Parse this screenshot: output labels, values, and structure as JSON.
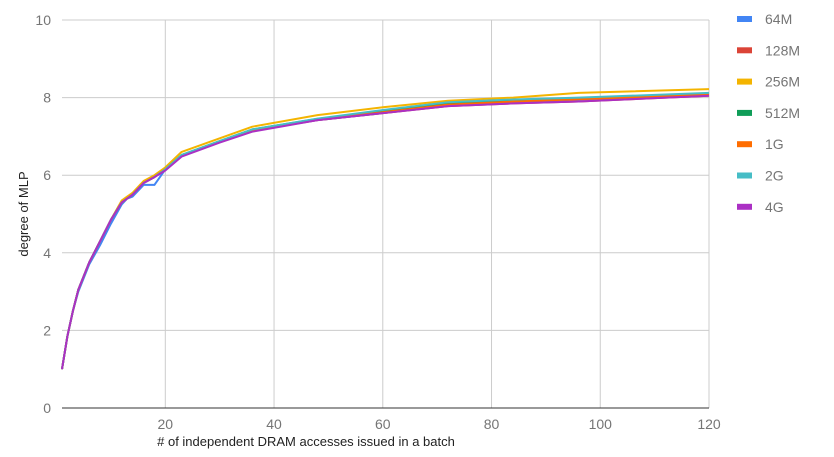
{
  "chart_data": {
    "type": "line",
    "title": "",
    "xlabel": "# of independent DRAM accesses issued in a batch",
    "ylabel": "degree of MLP",
    "xlim": [
      1,
      120
    ],
    "ylim": [
      0,
      10
    ],
    "x_ticks": [
      20,
      40,
      60,
      80,
      100,
      120
    ],
    "y_ticks": [
      0,
      2,
      4,
      6,
      8,
      10
    ],
    "grid": true,
    "legend_position": "right",
    "series": [
      {
        "name": "64M",
        "color": "#4285f4",
        "points": [
          [
            1,
            1.0
          ],
          [
            2,
            1.85
          ],
          [
            3,
            2.5
          ],
          [
            4,
            3.0
          ],
          [
            6,
            3.7
          ],
          [
            8,
            4.2
          ],
          [
            10,
            4.75
          ],
          [
            12,
            5.25
          ],
          [
            13,
            5.4
          ],
          [
            14,
            5.45
          ],
          [
            16,
            5.75
          ],
          [
            17,
            5.75
          ],
          [
            18,
            5.75
          ],
          [
            20,
            6.15
          ],
          [
            23,
            6.5
          ],
          [
            30,
            6.85
          ],
          [
            36,
            7.15
          ],
          [
            48,
            7.42
          ],
          [
            60,
            7.6
          ],
          [
            72,
            7.8
          ],
          [
            84,
            7.88
          ],
          [
            96,
            7.95
          ],
          [
            120,
            8.08
          ]
        ]
      },
      {
        "name": "128M",
        "color": "#db4437",
        "points": [
          [
            1,
            1.0
          ],
          [
            2,
            1.85
          ],
          [
            3,
            2.5
          ],
          [
            4,
            3.05
          ],
          [
            6,
            3.75
          ],
          [
            8,
            4.3
          ],
          [
            10,
            4.85
          ],
          [
            12,
            5.3
          ],
          [
            14,
            5.5
          ],
          [
            16,
            5.8
          ],
          [
            18,
            5.95
          ],
          [
            20,
            6.15
          ],
          [
            23,
            6.5
          ],
          [
            30,
            6.85
          ],
          [
            36,
            7.15
          ],
          [
            48,
            7.42
          ],
          [
            60,
            7.6
          ],
          [
            72,
            7.78
          ],
          [
            84,
            7.85
          ],
          [
            96,
            7.9
          ],
          [
            120,
            8.05
          ]
        ]
      },
      {
        "name": "256M",
        "color": "#f4b400",
        "points": [
          [
            1,
            1.0
          ],
          [
            2,
            1.85
          ],
          [
            3,
            2.5
          ],
          [
            4,
            3.05
          ],
          [
            6,
            3.75
          ],
          [
            8,
            4.3
          ],
          [
            10,
            4.85
          ],
          [
            12,
            5.35
          ],
          [
            14,
            5.55
          ],
          [
            16,
            5.85
          ],
          [
            18,
            6.0
          ],
          [
            20,
            6.2
          ],
          [
            23,
            6.6
          ],
          [
            30,
            6.95
          ],
          [
            36,
            7.25
          ],
          [
            48,
            7.55
          ],
          [
            60,
            7.75
          ],
          [
            72,
            7.92
          ],
          [
            84,
            8.0
          ],
          [
            96,
            8.12
          ],
          [
            120,
            8.22
          ]
        ]
      },
      {
        "name": "512M",
        "color": "#0f9d58",
        "points": [
          [
            1,
            1.0
          ],
          [
            2,
            1.85
          ],
          [
            3,
            2.5
          ],
          [
            4,
            3.05
          ],
          [
            6,
            3.75
          ],
          [
            8,
            4.3
          ],
          [
            10,
            4.85
          ],
          [
            12,
            5.3
          ],
          [
            14,
            5.5
          ],
          [
            16,
            5.8
          ],
          [
            18,
            5.95
          ],
          [
            20,
            6.15
          ],
          [
            23,
            6.52
          ],
          [
            30,
            6.88
          ],
          [
            36,
            7.18
          ],
          [
            48,
            7.45
          ],
          [
            60,
            7.65
          ],
          [
            72,
            7.85
          ],
          [
            84,
            7.92
          ],
          [
            96,
            7.98
          ],
          [
            120,
            8.1
          ]
        ]
      },
      {
        "name": "1G",
        "color": "#ff6d00",
        "points": [
          [
            1,
            1.0
          ],
          [
            2,
            1.85
          ],
          [
            3,
            2.5
          ],
          [
            4,
            3.05
          ],
          [
            6,
            3.75
          ],
          [
            8,
            4.3
          ],
          [
            10,
            4.85
          ],
          [
            12,
            5.3
          ],
          [
            14,
            5.5
          ],
          [
            16,
            5.8
          ],
          [
            18,
            5.95
          ],
          [
            20,
            6.15
          ],
          [
            23,
            6.5
          ],
          [
            30,
            6.86
          ],
          [
            36,
            7.16
          ],
          [
            48,
            7.44
          ],
          [
            60,
            7.62
          ],
          [
            72,
            7.82
          ],
          [
            84,
            7.9
          ],
          [
            96,
            7.96
          ],
          [
            120,
            8.08
          ]
        ]
      },
      {
        "name": "2G",
        "color": "#46bdc6",
        "points": [
          [
            1,
            1.0
          ],
          [
            2,
            1.85
          ],
          [
            3,
            2.5
          ],
          [
            4,
            3.05
          ],
          [
            6,
            3.75
          ],
          [
            8,
            4.3
          ],
          [
            10,
            4.85
          ],
          [
            12,
            5.3
          ],
          [
            14,
            5.5
          ],
          [
            16,
            5.8
          ],
          [
            18,
            5.95
          ],
          [
            20,
            6.15
          ],
          [
            23,
            6.52
          ],
          [
            30,
            6.88
          ],
          [
            36,
            7.18
          ],
          [
            48,
            7.46
          ],
          [
            60,
            7.68
          ],
          [
            72,
            7.88
          ],
          [
            84,
            7.95
          ],
          [
            96,
            8.0
          ],
          [
            120,
            8.12
          ]
        ]
      },
      {
        "name": "4G",
        "color": "#ab30c4",
        "points": [
          [
            1,
            1.0
          ],
          [
            2,
            1.85
          ],
          [
            3,
            2.5
          ],
          [
            4,
            3.05
          ],
          [
            6,
            3.75
          ],
          [
            8,
            4.3
          ],
          [
            10,
            4.85
          ],
          [
            12,
            5.3
          ],
          [
            14,
            5.5
          ],
          [
            16,
            5.8
          ],
          [
            18,
            5.95
          ],
          [
            20,
            6.12
          ],
          [
            23,
            6.48
          ],
          [
            30,
            6.84
          ],
          [
            36,
            7.12
          ],
          [
            48,
            7.42
          ],
          [
            60,
            7.6
          ],
          [
            72,
            7.78
          ],
          [
            84,
            7.85
          ],
          [
            96,
            7.9
          ],
          [
            120,
            8.05
          ]
        ]
      }
    ]
  }
}
